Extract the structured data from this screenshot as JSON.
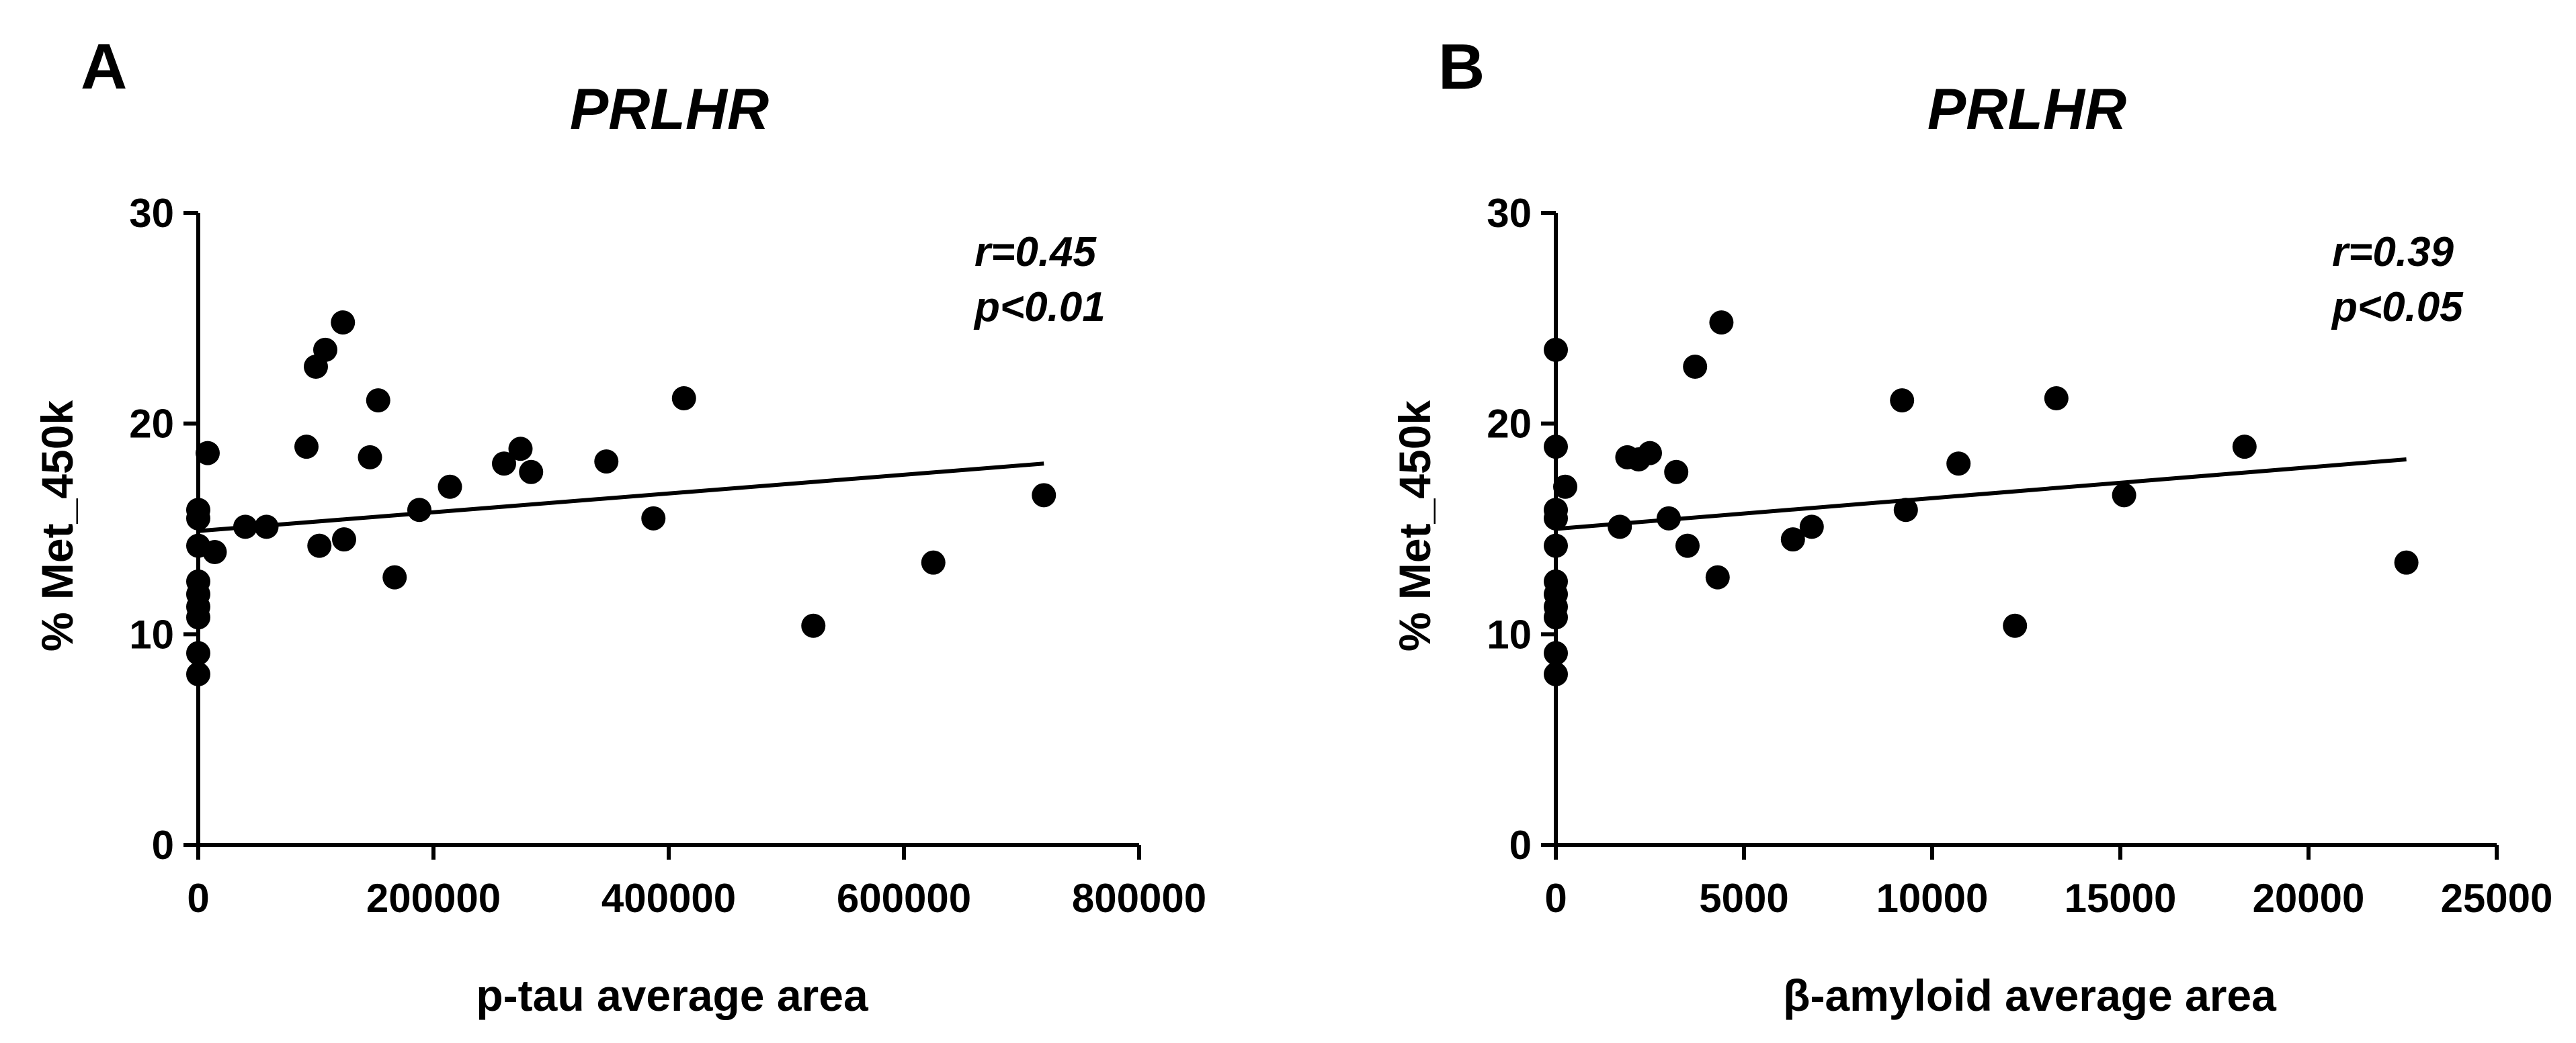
{
  "chart_data": [
    {
      "type": "scatter",
      "panel_label": "A",
      "title": "PRLHR",
      "xlabel": "p-tau average area",
      "ylabel": "% Met_450k",
      "xlim": [
        0,
        800000
      ],
      "ylim": [
        0,
        30
      ],
      "xticks": [
        0,
        200000,
        400000,
        600000,
        800000
      ],
      "xtick_labels": [
        "0",
        "200000",
        "400000",
        "600000",
        "800000"
      ],
      "yticks": [
        0,
        10,
        20,
        30
      ],
      "ytick_labels": [
        "0",
        "10",
        "20",
        "30"
      ],
      "annotation": [
        "r=0.45",
        "p<0.01"
      ],
      "points": [
        {
          "x": 0,
          "y": 8.1
        },
        {
          "x": 0,
          "y": 9.1
        },
        {
          "x": 0,
          "y": 10.8
        },
        {
          "x": 0,
          "y": 11.3
        },
        {
          "x": 0,
          "y": 11.9
        },
        {
          "x": 0,
          "y": 12.5
        },
        {
          "x": 0,
          "y": 14.2
        },
        {
          "x": 0,
          "y": 15.5
        },
        {
          "x": 0,
          "y": 15.9
        },
        {
          "x": 8000,
          "y": 18.6
        },
        {
          "x": 14000,
          "y": 13.9
        },
        {
          "x": 40000,
          "y": 15.1
        },
        {
          "x": 58000,
          "y": 15.1
        },
        {
          "x": 92000,
          "y": 18.9
        },
        {
          "x": 100000,
          "y": 22.7
        },
        {
          "x": 103000,
          "y": 14.2
        },
        {
          "x": 108000,
          "y": 23.5
        },
        {
          "x": 123000,
          "y": 24.8
        },
        {
          "x": 124000,
          "y": 14.5
        },
        {
          "x": 146000,
          "y": 18.4
        },
        {
          "x": 153000,
          "y": 21.1
        },
        {
          "x": 167000,
          "y": 12.7
        },
        {
          "x": 188000,
          "y": 15.9
        },
        {
          "x": 214000,
          "y": 17.0
        },
        {
          "x": 260000,
          "y": 18.1
        },
        {
          "x": 274000,
          "y": 18.8
        },
        {
          "x": 283000,
          "y": 17.7
        },
        {
          "x": 347000,
          "y": 18.2
        },
        {
          "x": 387000,
          "y": 15.5
        },
        {
          "x": 413000,
          "y": 21.2
        },
        {
          "x": 523000,
          "y": 10.4
        },
        {
          "x": 625000,
          "y": 13.4
        },
        {
          "x": 719000,
          "y": 16.6
        }
      ],
      "fit_line": {
        "x": [
          0,
          719000
        ],
        "y": [
          14.9,
          18.1
        ]
      }
    },
    {
      "type": "scatter",
      "panel_label": "B",
      "title": "PRLHR",
      "xlabel": "β-amyloid average area",
      "ylabel": "% Met_450k",
      "xlim": [
        0,
        25000
      ],
      "ylim": [
        0,
        30
      ],
      "xticks": [
        0,
        5000,
        10000,
        15000,
        20000,
        25000
      ],
      "xtick_labels": [
        "0",
        "5000",
        "10000",
        "15000",
        "20000",
        "25000"
      ],
      "yticks": [
        0,
        10,
        20,
        30
      ],
      "ytick_labels": [
        "0",
        "10",
        "20",
        "30"
      ],
      "annotation": [
        "r=0.39",
        "p<0.05"
      ],
      "points": [
        {
          "x": 0,
          "y": 8.1
        },
        {
          "x": 0,
          "y": 9.1
        },
        {
          "x": 0,
          "y": 10.8
        },
        {
          "x": 0,
          "y": 11.3
        },
        {
          "x": 0,
          "y": 11.9
        },
        {
          "x": 0,
          "y": 12.5
        },
        {
          "x": 0,
          "y": 14.2
        },
        {
          "x": 0,
          "y": 15.5
        },
        {
          "x": 0,
          "y": 15.9
        },
        {
          "x": 0,
          "y": 18.9
        },
        {
          "x": 0,
          "y": 23.5
        },
        {
          "x": 250,
          "y": 17.0
        },
        {
          "x": 1700,
          "y": 15.1
        },
        {
          "x": 1900,
          "y": 18.4
        },
        {
          "x": 2200,
          "y": 18.3
        },
        {
          "x": 2500,
          "y": 18.6
        },
        {
          "x": 3000,
          "y": 15.5
        },
        {
          "x": 3200,
          "y": 17.7
        },
        {
          "x": 3500,
          "y": 14.2
        },
        {
          "x": 3700,
          "y": 22.7
        },
        {
          "x": 4300,
          "y": 12.7
        },
        {
          "x": 4400,
          "y": 24.8
        },
        {
          "x": 6300,
          "y": 14.5
        },
        {
          "x": 6800,
          "y": 15.1
        },
        {
          "x": 9200,
          "y": 21.1
        },
        {
          "x": 9300,
          "y": 15.9
        },
        {
          "x": 10700,
          "y": 18.1
        },
        {
          "x": 12200,
          "y": 10.4
        },
        {
          "x": 13300,
          "y": 21.2
        },
        {
          "x": 15100,
          "y": 16.6
        },
        {
          "x": 18300,
          "y": 18.9
        },
        {
          "x": 22600,
          "y": 13.4
        }
      ],
      "fit_line": {
        "x": [
          0,
          22600
        ],
        "y": [
          15.0,
          18.3
        ]
      }
    }
  ]
}
